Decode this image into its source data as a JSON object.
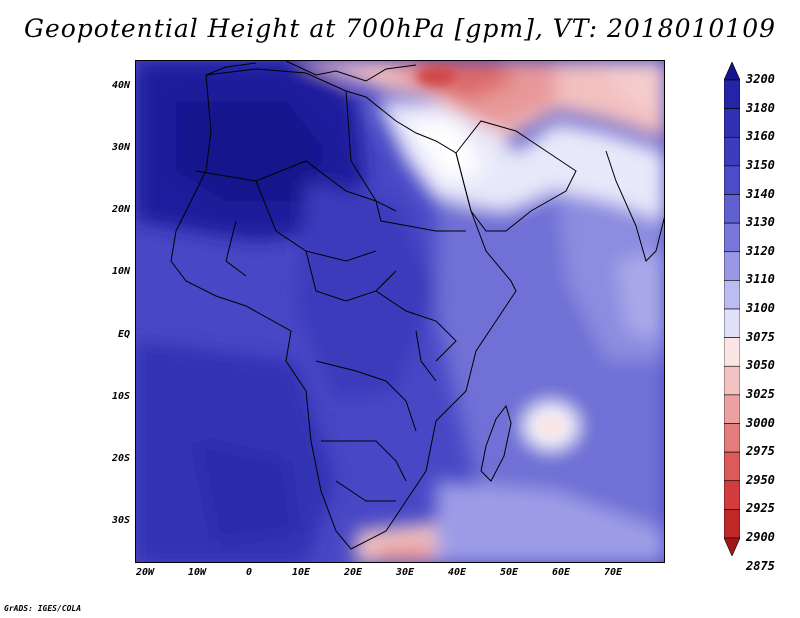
{
  "title": "Geopotential Height at 700hPa [gpm], VT: 2018010109",
  "credit": "GrADS: IGES/COLA",
  "map": {
    "lat_labels": [
      "40N",
      "30N",
      "20N",
      "10N",
      "EQ",
      "10S",
      "20S",
      "30S"
    ],
    "lon_labels": [
      "20W",
      "10W",
      "0",
      "10E",
      "20E",
      "30E",
      "40E",
      "50E",
      "60E",
      "70E"
    ],
    "field": "Geopotential Height",
    "level": "700hPa",
    "units": "gpm",
    "valid_time": "2018010109"
  },
  "colorbar": {
    "levels": [
      "3200",
      "3180",
      "3160",
      "3150",
      "3140",
      "3130",
      "3120",
      "3110",
      "3100",
      "3075",
      "3050",
      "3025",
      "3000",
      "2975",
      "2950",
      "2925",
      "2900",
      "2875"
    ],
    "colors": [
      "#14148c",
      "#2424a8",
      "#3030b4",
      "#3c3cbe",
      "#4c4cc8",
      "#6060d0",
      "#7878da",
      "#9898e4",
      "#bcbcf0",
      "#e0e0fa",
      "#fae4e4",
      "#f4c4c4",
      "#eca0a0",
      "#e47c7c",
      "#dc5a5a",
      "#d23c3c",
      "#c02828",
      "#a01818"
    ]
  }
}
